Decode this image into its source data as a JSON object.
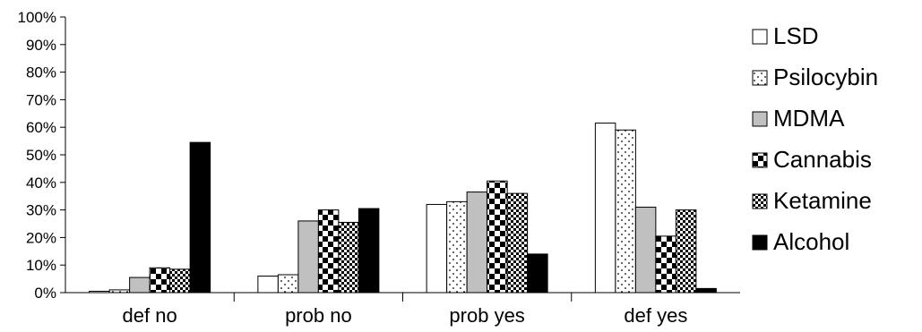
{
  "chart_data": {
    "type": "bar",
    "title": "",
    "xlabel": "",
    "ylabel": "",
    "categories": [
      "def no",
      "prob no",
      "prob yes",
      "def yes"
    ],
    "ylim": [
      0,
      100
    ],
    "yticks": [
      0,
      10,
      20,
      30,
      40,
      50,
      60,
      70,
      80,
      90,
      100
    ],
    "ytick_format": "%",
    "grid": false,
    "legend_position": "right",
    "series": [
      {
        "name": "LSD",
        "pattern": "blank",
        "values": [
          0.5,
          6,
          32,
          61.5
        ]
      },
      {
        "name": "Psilocybin",
        "pattern": "dots",
        "values": [
          1,
          6.5,
          33,
          59
        ]
      },
      {
        "name": "MDMA",
        "pattern": "gray",
        "values": [
          5.5,
          26,
          36.5,
          31
        ]
      },
      {
        "name": "Cannabis",
        "pattern": "checker",
        "values": [
          9,
          30,
          40.5,
          20.5
        ]
      },
      {
        "name": "Ketamine",
        "pattern": "fine-checker",
        "values": [
          8.5,
          25.5,
          36,
          30
        ]
      },
      {
        "name": "Alcohol",
        "pattern": "black",
        "values": [
          54.5,
          30.5,
          14,
          1.5
        ]
      }
    ],
    "colors": {
      "gray": "#c0c0c0",
      "black": "#000000",
      "stroke": "#000000"
    }
  }
}
